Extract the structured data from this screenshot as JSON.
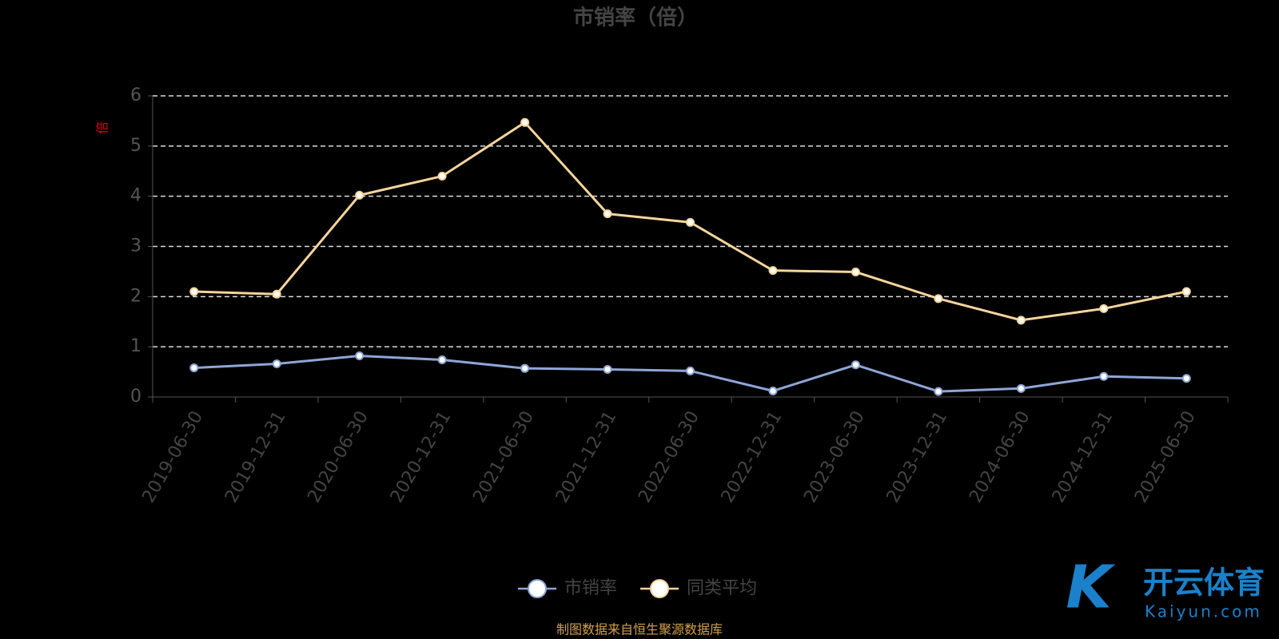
{
  "chart_data": {
    "type": "line",
    "title": "市销率（倍）",
    "y_unit": "倍",
    "categories": [
      "2019-06-30",
      "2019-12-31",
      "2020-06-30",
      "2020-12-31",
      "2021-06-30",
      "2021-12-31",
      "2022-06-30",
      "2022-12-31",
      "2023-06-30",
      "2023-12-31",
      "2024-06-30",
      "2024-12-31",
      "2025-06-30"
    ],
    "series": [
      {
        "name": "市销率",
        "color": "#8ea6d6",
        "values": [
          0.58,
          0.66,
          0.82,
          0.74,
          0.57,
          0.55,
          0.52,
          0.12,
          0.64,
          0.11,
          0.17,
          0.41,
          0.37
        ]
      },
      {
        "name": "同类平均",
        "color": "#f6d59c",
        "values": [
          2.1,
          2.05,
          4.02,
          4.4,
          5.47,
          3.65,
          3.48,
          2.52,
          2.49,
          1.96,
          1.53,
          1.76,
          2.1
        ]
      }
    ],
    "ylim": [
      0,
      6
    ],
    "yticks": [
      0,
      1,
      2,
      3,
      4,
      5,
      6
    ],
    "grid": true,
    "legend": "bottom",
    "source": "制图数据来自恒生聚源数据库",
    "watermark": {
      "brand": "开云体育",
      "site": "Kaiyun.com"
    }
  }
}
